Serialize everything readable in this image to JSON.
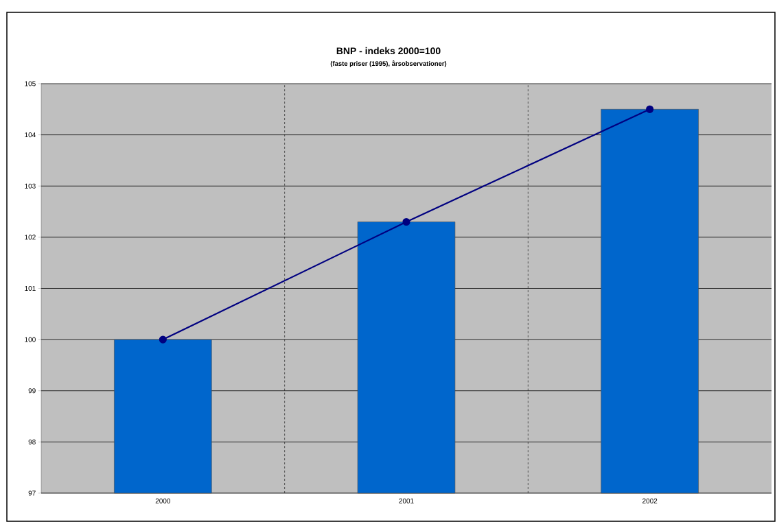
{
  "chart_data": {
    "type": "bar",
    "title": "BNP - indeks 2000=100",
    "subtitle": "(faste priser (1995), årsobservationer)",
    "categories": [
      "2000",
      "2001",
      "2002"
    ],
    "series": [
      {
        "color": "#0066cc",
        "values": [
          100,
          102.3,
          104.5
        ]
      },
      {
        "type": "line",
        "color": "#000080",
        "marker": "circle",
        "values": [
          100,
          102.3,
          104.5
        ]
      }
    ],
    "ylim": [
      97,
      105
    ],
    "yticks": [
      97,
      98,
      99,
      100,
      101,
      102,
      103,
      104,
      105
    ],
    "grid": true
  }
}
